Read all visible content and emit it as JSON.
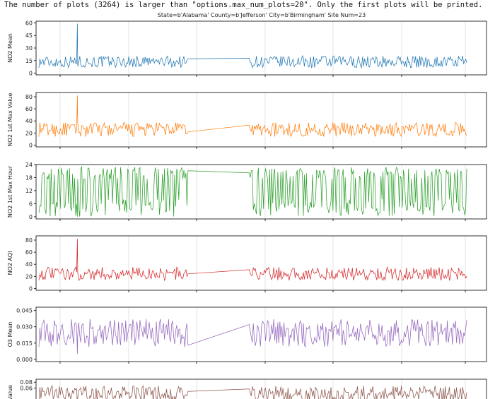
{
  "notice": "The number of plots (3264) is larger than \"options.max_num_plots=20\". Only the first plots will be printed.",
  "title": "State=b'Alabama' County=b'Jefferson' City=b'Birmingham' Site Num=23",
  "chart_data": [
    {
      "type": "line",
      "ylabel": "NO2 Mean",
      "color": "#1f77b4",
      "yticks": [
        "0",
        "15",
        "30",
        "45",
        "60"
      ],
      "tick_values": [
        0,
        15,
        30,
        45,
        60
      ],
      "ylim": [
        -2,
        62
      ],
      "range": [
        3,
        25
      ],
      "spike": 59
    },
    {
      "type": "line",
      "ylabel": "NO2 1st Max Value",
      "color": "#ff7f0e",
      "yticks": [
        "0",
        "20",
        "40",
        "60",
        "80"
      ],
      "tick_values": [
        0,
        20,
        40,
        60,
        80
      ],
      "ylim": [
        -3,
        87
      ],
      "range": [
        8,
        45
      ],
      "spike": 82
    },
    {
      "type": "line",
      "ylabel": "NO2 1st Max Hour",
      "color": "#2ca02c",
      "yticks": [
        "0",
        "6",
        "12",
        "18",
        "24"
      ],
      "tick_values": [
        0,
        6,
        12,
        18,
        24
      ],
      "ylim": [
        -1,
        24
      ],
      "range": [
        0,
        23
      ],
      "spike": 0
    },
    {
      "type": "line",
      "ylabel": "NO2 AQI",
      "color": "#d62728",
      "yticks": [
        "0",
        "20",
        "40",
        "60",
        "80"
      ],
      "tick_values": [
        0,
        20,
        40,
        60,
        80
      ],
      "ylim": [
        -3,
        87
      ],
      "range": [
        8,
        42
      ],
      "spike": 82
    },
    {
      "type": "line",
      "ylabel": "O3 Mean",
      "color": "#9467bd",
      "yticks": [
        "0.000",
        "0.015",
        "0.030",
        "0.045"
      ],
      "tick_values": [
        0,
        0.015,
        0.03,
        0.045
      ],
      "ylim": [
        -0.002,
        0.048
      ],
      "range": [
        0.005,
        0.045
      ],
      "spike": 0.005
    },
    {
      "type": "line",
      "ylabel": "Value",
      "color": "#8c564b",
      "yticks": [
        "0.06",
        "0.08"
      ],
      "tick_values": [
        0.06,
        0.08
      ],
      "ylim": [
        0.0,
        0.09
      ],
      "range": [
        0.0,
        0.085
      ],
      "spike": 0.0
    }
  ]
}
